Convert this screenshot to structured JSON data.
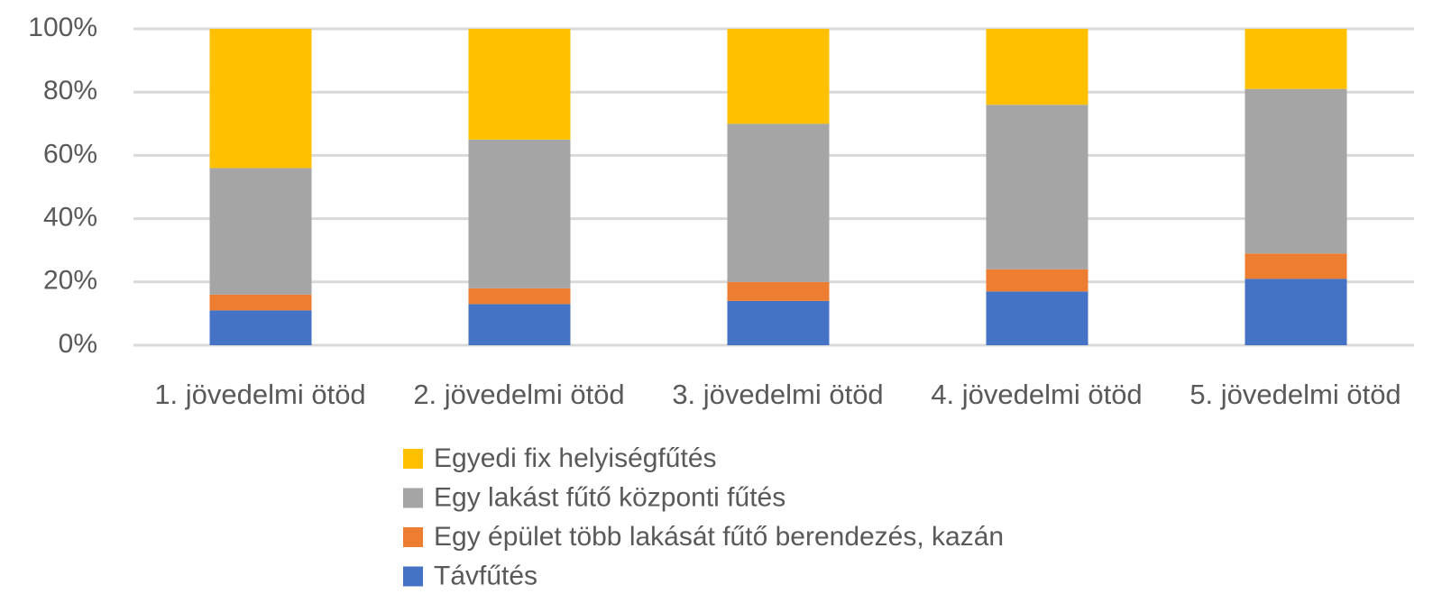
{
  "chart_data": {
    "type": "stacked_bar",
    "categories": [
      "1. jövedelmi ötöd",
      "2. jövedelmi ötöd",
      "3. jövedelmi ötöd",
      "4. jövedelmi ötöd",
      "5. jövedelmi ötöd"
    ],
    "series": [
      {
        "name": "Távfűtés",
        "color": "#4472c4",
        "values": [
          11,
          13,
          14,
          17,
          21
        ]
      },
      {
        "name": "Egy épület több lakását fűtő berendezés, kazán",
        "color": "#ed7d31",
        "values": [
          5,
          5,
          6,
          7,
          8
        ]
      },
      {
        "name": "Egy lakást fűtő központi fűtés",
        "color": "#a5a5a5",
        "values": [
          40,
          47,
          50,
          52,
          52
        ]
      },
      {
        "name": "Egyedi fix helyiségfűtés",
        "color": "#ffc000",
        "values": [
          44,
          35,
          30,
          24,
          19
        ]
      }
    ],
    "ylim": [
      0,
      100
    ],
    "yticks": [
      {
        "value": 0,
        "label": "0%"
      },
      {
        "value": 20,
        "label": "20%"
      },
      {
        "value": 40,
        "label": "40%"
      },
      {
        "value": 60,
        "label": "60%"
      },
      {
        "value": 80,
        "label": "80%"
      },
      {
        "value": 100,
        "label": "100%"
      }
    ],
    "grid": true
  }
}
